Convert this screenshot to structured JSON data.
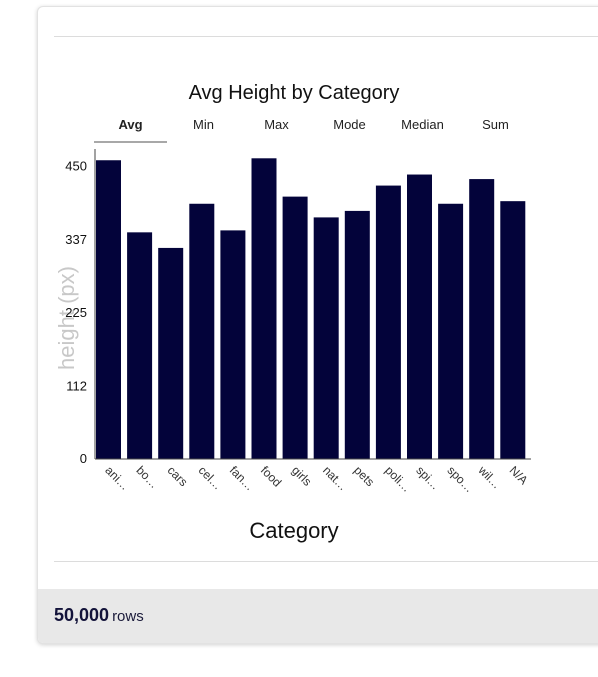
{
  "footer": {
    "row_count": "50,000",
    "row_unit": "rows"
  },
  "tabs": [
    "Avg",
    "Min",
    "Max",
    "Mode",
    "Median",
    "Sum"
  ],
  "active_tab": "Avg",
  "colors": {
    "bar": "#03033a",
    "axis": "#444444",
    "ylabel": "#c8c8c8"
  },
  "chart_data": {
    "type": "bar",
    "title": "Avg Height by Category",
    "xlabel": "Category",
    "ylabel": "height (px)",
    "categories": [
      "ani…",
      "bo…",
      "cars",
      "cel…",
      "fan…",
      "food",
      "girls",
      "nat…",
      "pets",
      "poli…",
      "spi…",
      "spo…",
      "wil…",
      "N/A"
    ],
    "values": [
      460,
      349,
      325,
      393,
      352,
      463,
      404,
      372,
      382,
      421,
      438,
      393,
      431,
      397
    ],
    "yticks": [
      0,
      112,
      225,
      337,
      450
    ],
    "ylim": [
      0,
      465
    ],
    "grid": false,
    "legend": "none"
  }
}
